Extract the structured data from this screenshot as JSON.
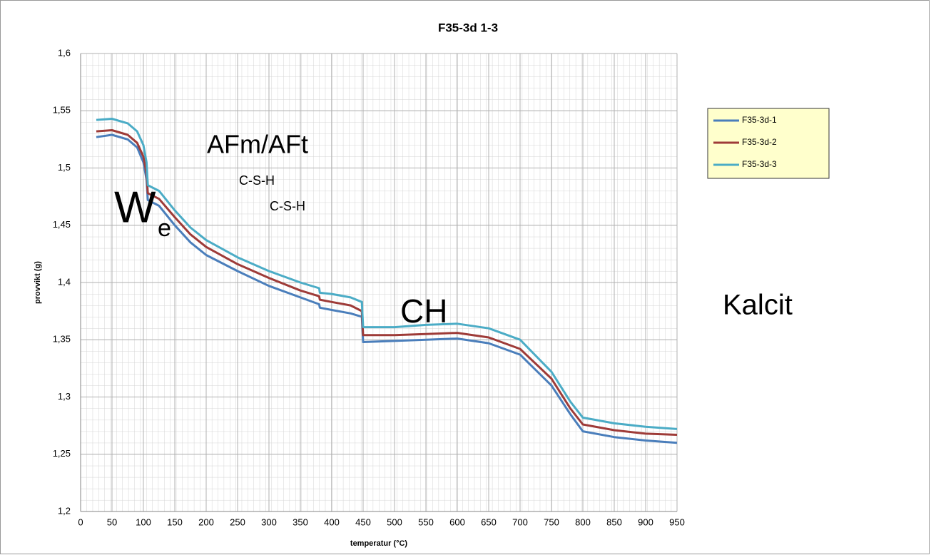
{
  "chart_data": {
    "type": "line",
    "title": "F35-3d 1-3",
    "x_label": "temperatur (°C)",
    "y_label": "provvikt (g)",
    "x": [
      25,
      50,
      75,
      90,
      100,
      105,
      107,
      125,
      150,
      175,
      200,
      250,
      300,
      350,
      380,
      381,
      400,
      430,
      448,
      450,
      500,
      550,
      600,
      650,
      700,
      750,
      780,
      800,
      850,
      900,
      950
    ],
    "series": [
      {
        "name": "F35-3d-1",
        "color": "#4a7ebb",
        "values": [
          1.527,
          1.529,
          1.525,
          1.518,
          1.505,
          1.49,
          1.472,
          1.467,
          1.45,
          1.435,
          1.424,
          1.41,
          1.397,
          1.387,
          1.381,
          1.378,
          1.376,
          1.373,
          1.37,
          1.348,
          1.349,
          1.35,
          1.351,
          1.347,
          1.337,
          1.31,
          1.285,
          1.27,
          1.265,
          1.262,
          1.26
        ]
      },
      {
        "name": "F35-3d-2",
        "color": "#9e3b38",
        "values": [
          1.532,
          1.533,
          1.529,
          1.522,
          1.51,
          1.495,
          1.478,
          1.473,
          1.457,
          1.442,
          1.431,
          1.416,
          1.404,
          1.393,
          1.388,
          1.385,
          1.383,
          1.38,
          1.375,
          1.354,
          1.354,
          1.355,
          1.356,
          1.352,
          1.342,
          1.316,
          1.29,
          1.276,
          1.271,
          1.268,
          1.267
        ]
      },
      {
        "name": "F35-3d-3",
        "color": "#4bacc6",
        "values": [
          1.542,
          1.543,
          1.539,
          1.532,
          1.52,
          1.505,
          1.485,
          1.48,
          1.463,
          1.448,
          1.437,
          1.422,
          1.41,
          1.4,
          1.395,
          1.391,
          1.39,
          1.387,
          1.383,
          1.361,
          1.361,
          1.363,
          1.364,
          1.36,
          1.35,
          1.322,
          1.296,
          1.282,
          1.277,
          1.274,
          1.272
        ]
      }
    ],
    "xlim": [
      0,
      950
    ],
    "xticks": [
      0,
      50,
      100,
      150,
      200,
      250,
      300,
      350,
      400,
      450,
      500,
      550,
      600,
      650,
      700,
      750,
      800,
      850,
      900,
      950
    ],
    "ylim": [
      1.2,
      1.6
    ],
    "yticks": [
      {
        "value": 1.2,
        "label": "1,2"
      },
      {
        "value": 1.25,
        "label": "1,25"
      },
      {
        "value": 1.3,
        "label": "1,3"
      },
      {
        "value": 1.35,
        "label": "1,35"
      },
      {
        "value": 1.4,
        "label": "1,4"
      },
      {
        "value": 1.45,
        "label": "1,45"
      },
      {
        "value": 1.5,
        "label": "1,5"
      },
      {
        "value": 1.55,
        "label": "1,55"
      },
      {
        "value": 1.6,
        "label": "1,6"
      }
    ],
    "grid": true,
    "legend": "upper right",
    "annotations": [
      "AFm/AFt",
      "C-S-H",
      "C-S-H",
      "W",
      "e",
      "CH",
      "Kalcit"
    ]
  }
}
